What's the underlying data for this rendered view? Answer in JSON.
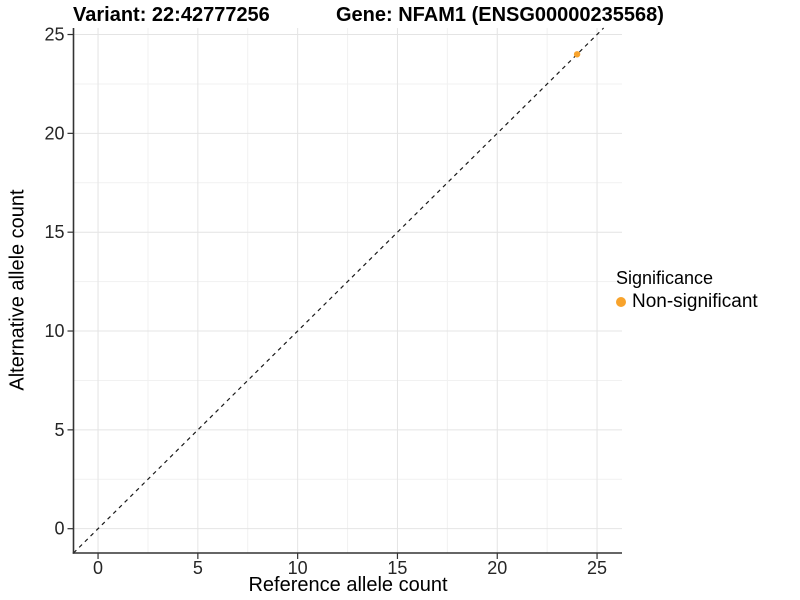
{
  "chart_data": {
    "type": "scatter",
    "titles": {
      "variant": "Variant: 22:42777256",
      "gene": "Gene: NFAM1 (ENSG00000235568)"
    },
    "xlabel": "Reference allele count",
    "ylabel": "Alternative allele count",
    "x_ticks": [
      0,
      5,
      10,
      15,
      20,
      25
    ],
    "y_ticks": [
      0,
      5,
      10,
      15,
      20,
      25
    ],
    "x_minor_ticks": [
      2.5,
      7.5,
      12.5,
      17.5,
      22.5
    ],
    "y_minor_ticks": [
      2.5,
      7.5,
      12.5,
      17.5,
      22.5
    ],
    "xlim": [
      -1.23,
      26.25
    ],
    "ylim": [
      -1.23,
      25.33
    ],
    "grid": {
      "major": true,
      "minor": true
    },
    "identity_line": {
      "slope": 1,
      "intercept": 0,
      "style": "dashed",
      "color": "#1a1a1a"
    },
    "series": [
      {
        "name": "Non-significant",
        "color": "#F8A32C",
        "points": [
          {
            "x": 24,
            "y": 24
          }
        ]
      }
    ],
    "legend": {
      "title": "Significance",
      "position": "right",
      "entries": [
        {
          "label": "Non-significant",
          "color": "#F8A32C"
        }
      ]
    },
    "colors": {
      "accent_orange": "#F8A32C",
      "axis_line": "#333333",
      "tick_label": "#262626",
      "grid_major": "#e4e4e4",
      "grid_minor": "#f1f1f1",
      "background": "#ffffff"
    }
  }
}
